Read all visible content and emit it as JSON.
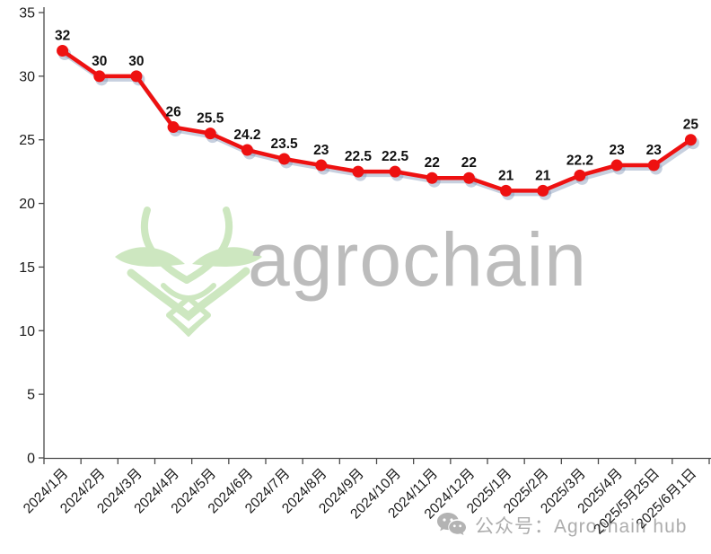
{
  "chart_data": {
    "type": "line",
    "title": "",
    "xlabel": "",
    "ylabel": "",
    "categories": [
      "2024/1月",
      "2024/2月",
      "2024/3月",
      "2024/4月",
      "2024/5月",
      "2024/6月",
      "2024/7月",
      "2024/8月",
      "2024/9月",
      "2024/10月",
      "2024/11月",
      "2024/12月",
      "2025/1月",
      "2025/2月",
      "2025/3月",
      "2025/4月",
      "2025/5月25日",
      "2025/6月1日"
    ],
    "series": [
      {
        "name": "price",
        "color": "#ee1111",
        "values": [
          32,
          30,
          30,
          26,
          25.5,
          24.2,
          23.5,
          23,
          22.5,
          22.5,
          22,
          22,
          21,
          21,
          22.2,
          23,
          23,
          25
        ]
      }
    ],
    "ylim": [
      0,
      35
    ],
    "yticks": [
      0,
      5,
      10,
      15,
      20,
      25,
      30,
      35
    ],
    "grid": false,
    "legend": false,
    "data_labels": true,
    "marker": "circle",
    "axis_color": "#4a4a4a",
    "tick_label_color": "#1a1a1a",
    "data_label_color": "#111111",
    "line_shadow_color": "rgba(130,150,185,0.45)"
  },
  "watermark": {
    "logo_icon": "antelope-logo",
    "logo_color": "#cde7c0",
    "brand_text": "agrochain",
    "brand_color": "#bcbcbc"
  },
  "footer": {
    "icon": "wechat-icon",
    "text": "公众号：Agrochain hub",
    "color": "#adadad"
  }
}
